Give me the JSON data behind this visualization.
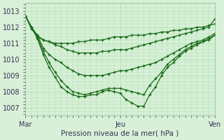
{
  "bg_color": "#d8f0d8",
  "grid_color": "#aaddaa",
  "line_color": "#1a6b1a",
  "marker_color": "#1a6b1a",
  "xlabel": "Pression niveau de la mer( hPa )",
  "xtick_labels": [
    "Mar",
    "Jeu",
    "Ven"
  ],
  "xtick_positions": [
    0,
    16,
    32
  ],
  "ylim": [
    1006.5,
    1013.5
  ],
  "ytick_positions": [
    1007,
    1008,
    1009,
    1010,
    1011,
    1012,
    1013
  ],
  "series": [
    [
      1012.7,
      1011.9,
      1011.4,
      1011.2,
      1011.1,
      1011.0,
      1011.0,
      1011.0,
      1011.0,
      1011.1,
      1011.1,
      1011.2,
      1011.2,
      1011.2,
      1011.3,
      1011.4,
      1011.4,
      1011.4,
      1011.5,
      1011.5,
      1011.5,
      1011.6,
      1011.6,
      1011.7,
      1011.7,
      1011.8,
      1011.8,
      1011.9,
      1011.9,
      1012.0,
      1012.0,
      1012.1,
      1012.2
    ],
    [
      1012.7,
      1011.9,
      1011.5,
      1011.2,
      1011.1,
      1010.9,
      1010.8,
      1010.6,
      1010.5,
      1010.4,
      1010.4,
      1010.4,
      1010.4,
      1010.5,
      1010.5,
      1010.6,
      1010.6,
      1010.6,
      1010.7,
      1010.8,
      1010.9,
      1011.0,
      1011.1,
      1011.2,
      1011.3,
      1011.4,
      1011.5,
      1011.6,
      1011.7,
      1011.8,
      1011.9,
      1012.0,
      1012.5
    ],
    [
      1012.7,
      1012.0,
      1011.5,
      1010.7,
      1010.3,
      1010.0,
      1009.8,
      1009.5,
      1009.3,
      1009.1,
      1009.0,
      1009.0,
      1009.0,
      1009.0,
      1009.1,
      1009.2,
      1009.3,
      1009.3,
      1009.4,
      1009.5,
      1009.6,
      1009.7,
      1009.8,
      1010.0,
      1010.2,
      1010.4,
      1010.6,
      1010.8,
      1011.0,
      1011.1,
      1011.2,
      1011.4,
      1011.6
    ],
    [
      1012.7,
      1012.0,
      1011.4,
      1010.5,
      1009.8,
      1009.2,
      1008.7,
      1008.3,
      1008.0,
      1007.9,
      1007.8,
      1007.9,
      1008.0,
      1008.1,
      1008.2,
      1008.2,
      1008.2,
      1008.1,
      1008.0,
      1007.9,
      1007.8,
      1008.4,
      1008.8,
      1009.2,
      1009.7,
      1010.0,
      1010.3,
      1010.6,
      1010.8,
      1011.0,
      1011.1,
      1011.3,
      1011.5
    ],
    [
      1012.7,
      1012.0,
      1011.3,
      1010.3,
      1009.5,
      1008.9,
      1008.3,
      1008.0,
      1007.8,
      1007.7,
      1007.7,
      1007.8,
      1007.8,
      1008.0,
      1008.1,
      1008.0,
      1007.9,
      1007.5,
      1007.3,
      1007.1,
      1007.1,
      1007.8,
      1008.3,
      1009.0,
      1009.5,
      1009.8,
      1010.2,
      1010.5,
      1010.7,
      1010.9,
      1011.1,
      1011.2,
      1011.5
    ]
  ]
}
